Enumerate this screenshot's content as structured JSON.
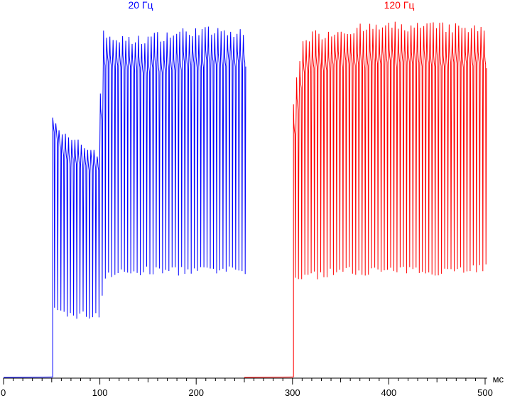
{
  "chart_data": {
    "type": "line",
    "xlabel": "мс",
    "xlim": [
      0,
      500
    ],
    "ylim": [
      0,
      100
    ],
    "grid": false,
    "x_ticks": [
      "0",
      "100",
      "200",
      "300",
      "400",
      "500"
    ],
    "series": [
      {
        "name": "20 Гц",
        "color": "#0000ff",
        "x_range": [
          0,
          250
        ],
        "baseline": [
          {
            "x": 0,
            "y": 0.2
          },
          {
            "x": 51,
            "y": 0.3
          }
        ],
        "envelope_upper": [
          {
            "x": 51,
            "y": 72
          },
          {
            "x": 60,
            "y": 66
          },
          {
            "x": 70,
            "y": 64
          },
          {
            "x": 80,
            "y": 63
          },
          {
            "x": 90,
            "y": 62
          },
          {
            "x": 100,
            "y": 61
          },
          {
            "x": 101,
            "y": 93
          },
          {
            "x": 130,
            "y": 91
          },
          {
            "x": 150,
            "y": 92
          },
          {
            "x": 200,
            "y": 94
          },
          {
            "x": 250,
            "y": 93
          }
        ],
        "envelope_lower": [
          {
            "x": 51,
            "y": 18
          },
          {
            "x": 70,
            "y": 17
          },
          {
            "x": 100,
            "y": 17
          },
          {
            "x": 101,
            "y": 28
          },
          {
            "x": 150,
            "y": 29
          },
          {
            "x": 200,
            "y": 29
          },
          {
            "x": 250,
            "y": 29
          }
        ],
        "mean_level": [
          {
            "x": 51,
            "y": 68
          },
          {
            "x": 60,
            "y": 61
          },
          {
            "x": 80,
            "y": 58
          },
          {
            "x": 100,
            "y": 57
          },
          {
            "x": 101,
            "y": 86
          },
          {
            "x": 150,
            "y": 84
          },
          {
            "x": 200,
            "y": 86
          },
          {
            "x": 250,
            "y": 86
          }
        ],
        "oscillation_period_ms": 3.3
      },
      {
        "name": "120 Гц",
        "color": "#ff0000",
        "x_range": [
          250,
          500
        ],
        "baseline": [
          {
            "x": 250,
            "y": 0.2
          },
          {
            "x": 301,
            "y": 0.3
          }
        ],
        "envelope_upper": [
          {
            "x": 301,
            "y": 74
          },
          {
            "x": 310,
            "y": 92
          },
          {
            "x": 350,
            "y": 94
          },
          {
            "x": 400,
            "y": 95
          },
          {
            "x": 450,
            "y": 95
          },
          {
            "x": 500,
            "y": 94
          }
        ],
        "envelope_lower": [
          {
            "x": 301,
            "y": 27
          },
          {
            "x": 350,
            "y": 29
          },
          {
            "x": 400,
            "y": 29
          },
          {
            "x": 450,
            "y": 29
          },
          {
            "x": 500,
            "y": 30
          }
        ],
        "mean_level": [
          {
            "x": 301,
            "y": 67
          },
          {
            "x": 310,
            "y": 84
          },
          {
            "x": 350,
            "y": 86
          },
          {
            "x": 400,
            "y": 86
          },
          {
            "x": 500,
            "y": 86
          }
        ],
        "oscillation_period_ms": 3.3
      }
    ]
  }
}
